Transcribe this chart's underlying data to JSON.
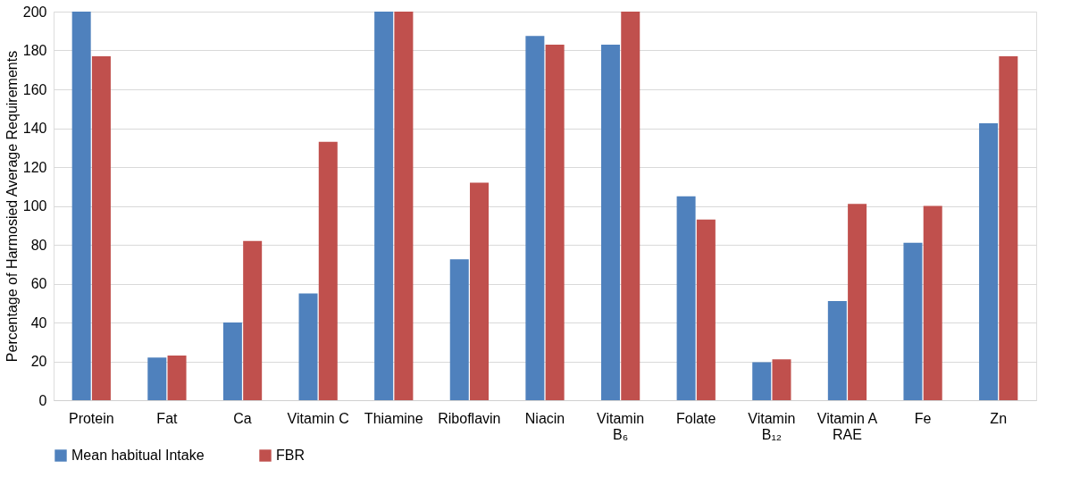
{
  "chart_data": {
    "type": "bar",
    "ylabel": "Percentage of Harmosied Average Requirements",
    "categories": [
      "Protein",
      "Fat",
      "Ca",
      "Vitamin C",
      "Thiamine",
      "Riboflavin",
      "Niacin",
      "Vitamin B₆",
      "Folate",
      "Vitamin B₁₂",
      "Vitamin A RAE",
      "Fe",
      "Zn"
    ],
    "series": [
      {
        "name": "Mean habitual Intake",
        "color": "#4f81bd",
        "values": [
          200,
          22,
          40,
          55,
          200,
          72.5,
          187.5,
          183,
          105,
          19.5,
          51,
          81,
          142.5
        ]
      },
      {
        "name": "FBR",
        "color": "#c0504d",
        "values": [
          177,
          23,
          82,
          133,
          200,
          112,
          183,
          200,
          93,
          21,
          101,
          100,
          177
        ]
      }
    ],
    "ylim": [
      0,
      200
    ],
    "yticks": [
      0,
      20,
      40,
      60,
      80,
      100,
      120,
      140,
      160,
      180,
      200
    ],
    "grid": "y",
    "legend": "bottom"
  }
}
